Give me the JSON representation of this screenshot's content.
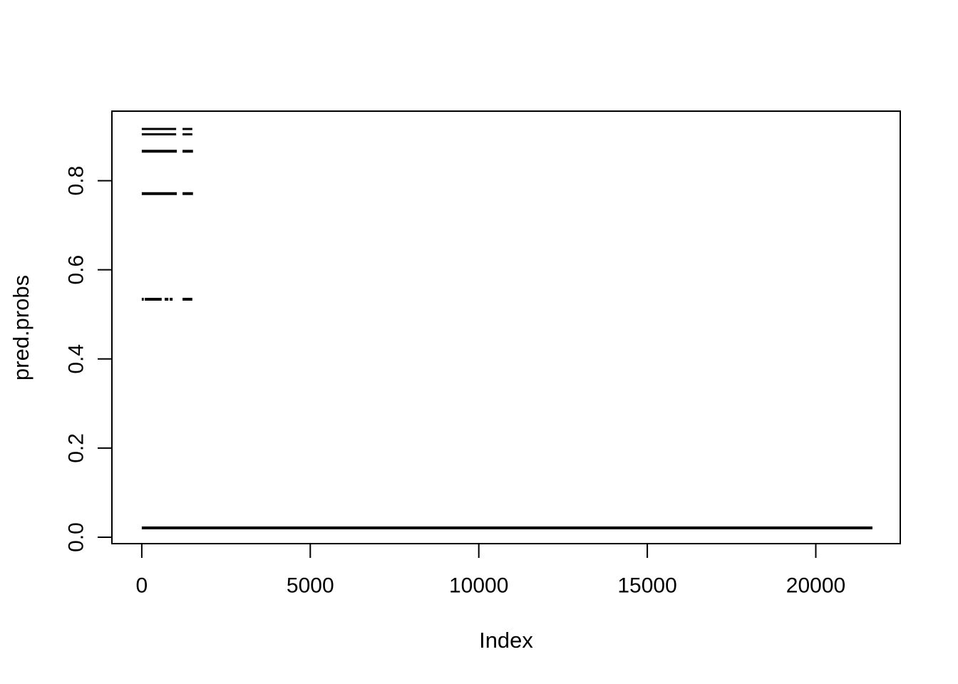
{
  "figure": {
    "background": "#ffffff",
    "foreground": "#000000"
  },
  "chart_data": {
    "type": "scatter",
    "title": "",
    "xlabel": "Index",
    "ylabel": "pred.probs",
    "grid": false,
    "legend": null,
    "point_color": "#000000",
    "x_axis": {
      "tick_values": [
        0,
        5000,
        10000,
        15000,
        20000
      ],
      "tick_labels": [
        "0",
        "5000",
        "10000",
        "15000",
        "20000"
      ],
      "range": [
        -886,
        22506
      ]
    },
    "y_axis": {
      "tick_values": [
        0.0,
        0.2,
        0.4,
        0.6,
        0.8
      ],
      "tick_labels": [
        "0.0",
        "0.2",
        "0.4",
        "0.6",
        "0.8"
      ],
      "range": [
        -0.0144,
        0.956
      ]
    },
    "description": "Predicted probabilities plotted against observation index; dense points merge into horizontal bands",
    "bands": [
      {
        "y": 0.916,
        "thickness": 3,
        "segments": [
          [
            0,
            1020
          ],
          [
            1210,
            1500
          ]
        ]
      },
      {
        "y": 0.904,
        "thickness": 3,
        "segments": [
          [
            0,
            1020
          ],
          [
            1210,
            1500
          ]
        ]
      },
      {
        "y": 0.866,
        "thickness": 4,
        "segments": [
          [
            0,
            1040
          ],
          [
            1210,
            1520
          ]
        ]
      },
      {
        "y": 0.771,
        "thickness": 4,
        "segments": [
          [
            0,
            1040
          ],
          [
            1210,
            1520
          ]
        ]
      },
      {
        "y": 0.534,
        "thickness": 4,
        "segments": [
          [
            0,
            60
          ],
          [
            90,
            590
          ],
          [
            680,
            790
          ],
          [
            830,
            915
          ],
          [
            1210,
            1500
          ]
        ]
      },
      {
        "y": 0.021,
        "thickness": 4,
        "segments": [
          [
            0,
            21680
          ]
        ]
      }
    ]
  }
}
